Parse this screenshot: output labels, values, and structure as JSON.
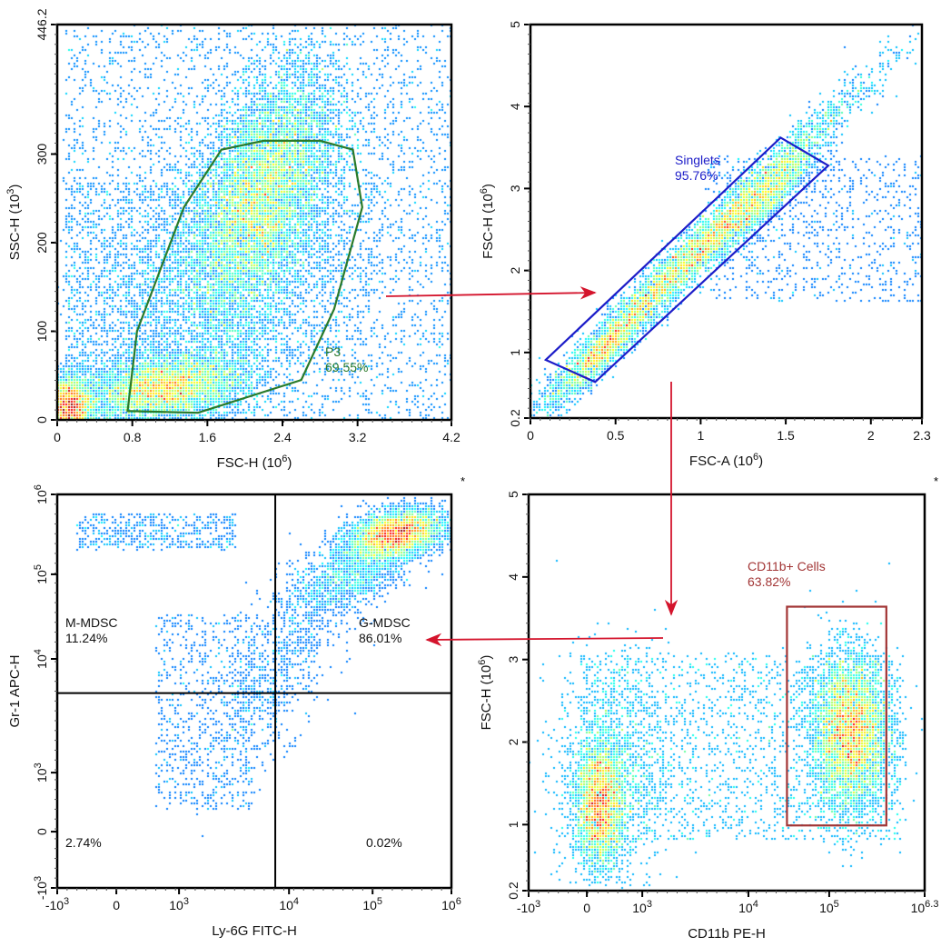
{
  "colors": {
    "p3_gate": "#2a7a2a",
    "singlets_gate": "#1c1cc8",
    "cd11b_gate": "#a23535",
    "arrow": "#d4142c",
    "axis": "#000000"
  },
  "chart_data": [
    {
      "type": "scatter",
      "subtype": "density-dot-plot",
      "xlabel": {
        "text": "FSC-H",
        "unit_base": "(10",
        "unit_exp": "6",
        "unit_close": ")"
      },
      "ylabel": {
        "text": "SSC-H",
        "unit_base": "(10",
        "unit_exp": "3",
        "unit_close": ")"
      },
      "xlim": [
        0,
        4.2
      ],
      "ylim": [
        0,
        446.2
      ],
      "scale": "linear",
      "xticks": [
        {
          "v": 0,
          "b": "0"
        },
        {
          "v": 0.8,
          "b": "0.8"
        },
        {
          "v": 1.6,
          "b": "1.6"
        },
        {
          "v": 2.4,
          "b": "2.4"
        },
        {
          "v": 3.2,
          "b": "3.2"
        },
        {
          "v": 4.2,
          "b": "4.2"
        }
      ],
      "yticks": [
        {
          "v": 0,
          "b": "0"
        },
        {
          "v": 100,
          "b": "100"
        },
        {
          "v": 200,
          "b": "200"
        },
        {
          "v": 300,
          "b": "300"
        },
        {
          "v": 446.2,
          "b": "446.2"
        }
      ],
      "gate": {
        "name": "P3",
        "value": "69.55%",
        "shape": "polygon",
        "vertices": [
          [
            0.75,
            10
          ],
          [
            0.85,
            100
          ],
          [
            1.35,
            240
          ],
          [
            1.75,
            305
          ],
          [
            2.2,
            315
          ],
          [
            2.8,
            315
          ],
          [
            3.15,
            305
          ],
          [
            3.25,
            240
          ],
          [
            2.95,
            125
          ],
          [
            2.6,
            45
          ],
          [
            1.5,
            8
          ]
        ]
      }
    },
    {
      "type": "scatter",
      "subtype": "density-dot-plot",
      "xlabel": {
        "text": "FSC-A",
        "unit_base": "(10",
        "unit_exp": "6",
        "unit_close": ")"
      },
      "ylabel": {
        "text": "FSC-H",
        "unit_base": "(10",
        "unit_exp": "6",
        "unit_close": ")"
      },
      "xlim": [
        0,
        2.3
      ],
      "ylim": [
        0.2,
        5
      ],
      "scale": "linear",
      "xticks": [
        {
          "v": 0,
          "b": "0"
        },
        {
          "v": 0.5,
          "b": "0.5"
        },
        {
          "v": 1,
          "b": "1"
        },
        {
          "v": 1.5,
          "b": "1.5"
        },
        {
          "v": 2,
          "b": "2"
        },
        {
          "v": 2.3,
          "b": "2.3"
        }
      ],
      "yticks": [
        {
          "v": 0.2,
          "b": "0.2"
        },
        {
          "v": 1,
          "b": "1"
        },
        {
          "v": 2,
          "b": "2"
        },
        {
          "v": 3,
          "b": "3"
        },
        {
          "v": 4,
          "b": "4"
        },
        {
          "v": 5,
          "b": "5"
        }
      ],
      "gate": {
        "name": "Singlets",
        "value": "95.76%",
        "shape": "polygon",
        "vertices": [
          [
            0.09,
            0.91
          ],
          [
            0.38,
            0.64
          ],
          [
            1.75,
            3.28
          ],
          [
            1.47,
            3.62
          ]
        ]
      }
    },
    {
      "type": "scatter",
      "subtype": "density-dot-plot-quadrant",
      "xlabel": {
        "text": "Ly-6G FITC-H"
      },
      "ylabel": {
        "text": "Gr-1 APC-H"
      },
      "scale": "biexponential",
      "xlim": [
        -1000,
        1000000
      ],
      "ylim": [
        -1000,
        1000000
      ],
      "xticks": [
        {
          "v": -1000,
          "b": "-10",
          "e": "3"
        },
        {
          "v": 0,
          "b": "0"
        },
        {
          "v": 1000,
          "b": "10",
          "e": "3"
        },
        {
          "v": 10000,
          "b": "10",
          "e": "4"
        },
        {
          "v": 100000,
          "b": "10",
          "e": "5"
        },
        {
          "v": 1000000,
          "b": "10",
          "e": "6"
        }
      ],
      "yticks": [
        {
          "v": -1000,
          "b": "-10",
          "e": "3"
        },
        {
          "v": 0,
          "b": "0"
        },
        {
          "v": 1000,
          "b": "10",
          "e": "3"
        },
        {
          "v": 10000,
          "b": "10",
          "e": "4"
        },
        {
          "v": 100000,
          "b": "10",
          "e": "5"
        },
        {
          "v": 1000000,
          "b": "10",
          "e": "6"
        }
      ],
      "quadrant_divider": {
        "x": 7500,
        "y": 5000
      },
      "quadrants": [
        {
          "position": "top-left",
          "name": "M-MDSC",
          "value": "11.24%"
        },
        {
          "position": "top-right",
          "name": "G-MDSC",
          "value": "86.01%"
        },
        {
          "position": "bottom-left",
          "name": "",
          "value": "2.74%"
        },
        {
          "position": "bottom-right",
          "name": "",
          "value": "0.02%"
        }
      ],
      "corner_mark": "*"
    },
    {
      "type": "scatter",
      "subtype": "density-dot-plot",
      "xlabel": {
        "text": "CD11b PE-H"
      },
      "ylabel": {
        "text": "FSC-H",
        "unit_base": "(10",
        "unit_exp": "6",
        "unit_close": ")"
      },
      "xscale": "biexponential",
      "yscale": "linear",
      "xlim": [
        -1000,
        1995262
      ],
      "ylim": [
        0.2,
        5
      ],
      "xticks": [
        {
          "v": -1000,
          "b": "-10",
          "e": "3"
        },
        {
          "v": 0,
          "b": "0"
        },
        {
          "v": 1000,
          "b": "10",
          "e": "3"
        },
        {
          "v": 10000,
          "b": "10",
          "e": "4"
        },
        {
          "v": 100000,
          "b": "10",
          "e": "5"
        },
        {
          "v": 1995262,
          "b": "10",
          "e": "6.3"
        }
      ],
      "yticks": [
        {
          "v": 0.2,
          "b": "0.2"
        },
        {
          "v": 1,
          "b": "1"
        },
        {
          "v": 2,
          "b": "2"
        },
        {
          "v": 3,
          "b": "3"
        },
        {
          "v": 4,
          "b": "4"
        },
        {
          "v": 5,
          "b": "5"
        }
      ],
      "gate": {
        "name": "CD11b+ Cells",
        "value": "63.82%",
        "shape": "rectangle",
        "x_range": [
          30000,
          600000
        ],
        "y_range": [
          0.99,
          3.64
        ]
      },
      "corner_mark": "*"
    }
  ],
  "flow": [
    "P3 → Singlets",
    "Singlets → CD11b+ Cells",
    "CD11b+ Cells → G-MDSC"
  ]
}
